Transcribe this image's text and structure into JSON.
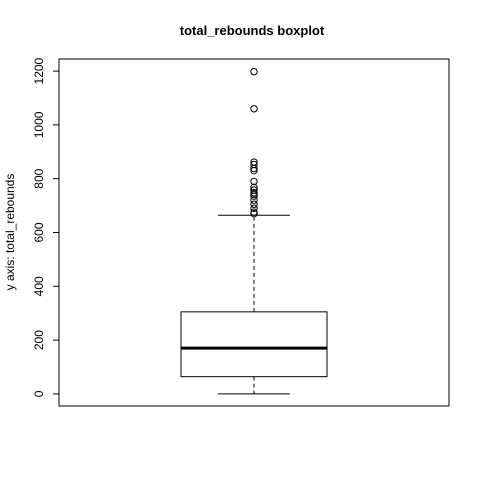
{
  "chart_data": {
    "type": "boxplot",
    "title": "total_rebounds boxplot",
    "xlabel": "",
    "ylabel": "y axis: total_rebounds",
    "ylim": [
      -45,
      1245
    ],
    "yticks": [
      0,
      200,
      400,
      600,
      800,
      1000,
      1200
    ],
    "grid": false,
    "box": {
      "whisker_low": 0,
      "q1": 64,
      "median": 170,
      "q3": 305,
      "whisker_high": 664
    },
    "outliers": [
      670,
      676,
      690,
      705,
      720,
      735,
      742,
      748,
      758,
      768,
      790,
      830,
      838,
      853,
      862,
      1060,
      1198
    ]
  }
}
